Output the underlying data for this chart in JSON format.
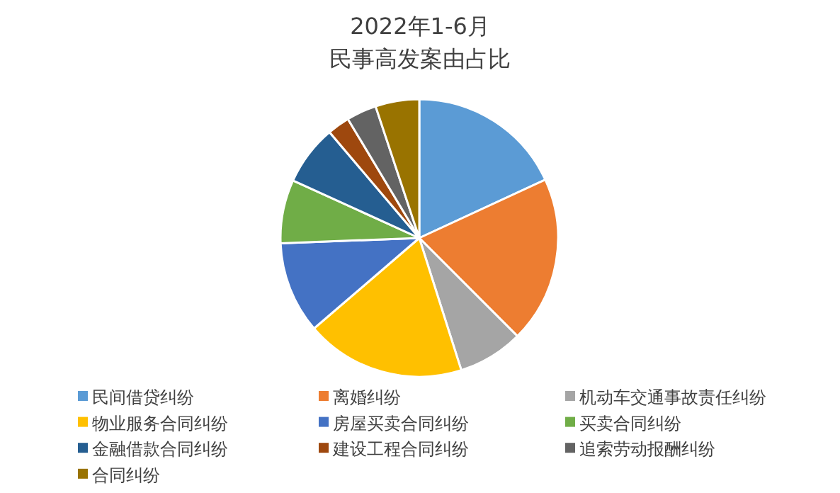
{
  "chart_data": {
    "type": "pie",
    "title": "2022年1-6月",
    "subtitle": "民事高发案由占比",
    "legend": "bottom",
    "categories": [
      "民间借贷纠纷",
      "离婚纠纷",
      "机动车交通事故责任纠纷",
      "物业服务合同纠纷",
      "房屋买卖合同纠纷",
      "买卖合同纠纷",
      "金融借款合同纠纷",
      "建设工程合同纠纷",
      "追索劳动报酬纠纷",
      "合同纠纷"
    ],
    "values": [
      18.1,
      19.4,
      7.6,
      18.6,
      10.7,
      7.4,
      7.0,
      2.6,
      3.5,
      5.1
    ],
    "colors": [
      "#5b9bd5",
      "#ed7d31",
      "#a5a5a5",
      "#ffc000",
      "#4472c4",
      "#70ad47",
      "#255e91",
      "#9e480e",
      "#636363",
      "#997300"
    ]
  }
}
